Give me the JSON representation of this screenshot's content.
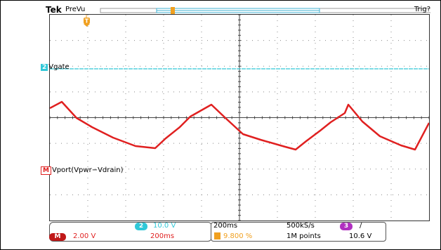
{
  "header": {
    "brand": "Tek",
    "mode": "PreVu",
    "trigger_status": "Trig?"
  },
  "trigger_marker": "T",
  "channels": {
    "ch2": {
      "number": "2",
      "name": "Vgate",
      "scale": "10.0 V",
      "color": "#30c8d8"
    },
    "math": {
      "number": "M",
      "name": "Vport(Vpwr−Vdrain)",
      "scale": "2.00 V",
      "time": "200ms",
      "color": "#e02020"
    }
  },
  "timebase": {
    "scale": "200ms",
    "sample_rate": "500kS/s",
    "record_length": "1M points",
    "trigger_position": "9.800 %"
  },
  "trigger": {
    "source": "3",
    "slope": "/",
    "level": "10.6 V",
    "source_color": "#b030c0"
  },
  "colors": {
    "grid": "#888888",
    "trigger_orange": "#f0a020"
  }
}
